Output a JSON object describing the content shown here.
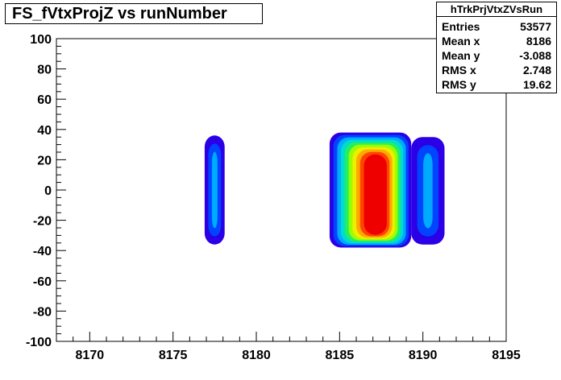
{
  "title": "FS_fVtxProjZ  vs runNumber",
  "stats": {
    "name": "hTrkPrjVtxZVsRun",
    "rows": [
      {
        "label": "Entries",
        "value": "53577"
      },
      {
        "label": "Mean x",
        "value": "8186"
      },
      {
        "label": "Mean y",
        "value": "-3.088"
      },
      {
        "label": "RMS x",
        "value": "2.748"
      },
      {
        "label": "RMS y",
        "value": "19.62"
      }
    ]
  },
  "chart_data": {
    "type": "heatmap",
    "title": "FS_fVtxProjZ  vs runNumber",
    "xlabel": "",
    "ylabel": "",
    "xlim": [
      8168,
      8195
    ],
    "ylim": [
      -100,
      100
    ],
    "x_ticks": [
      8170,
      8175,
      8180,
      8185,
      8190,
      8195
    ],
    "y_ticks": [
      -100,
      -80,
      -60,
      -40,
      -20,
      0,
      20,
      40,
      60,
      80,
      100
    ],
    "colormap": [
      "#2b00e6",
      "#0044ff",
      "#00aaff",
      "#00ddcc",
      "#22ee66",
      "#99ff00",
      "#eeee00",
      "#ffaa00",
      "#ff4400",
      "#ee0000"
    ],
    "clusters": [
      {
        "x_range": [
          8176.9,
          8178.1
        ],
        "y_range": [
          -36,
          36
        ],
        "peak_level": 2,
        "hotspots": [
          {
            "y": -20,
            "level": 2
          },
          {
            "y": 0,
            "level": 2
          },
          {
            "y": 15,
            "level": 2
          }
        ]
      },
      {
        "x_range": [
          8184.4,
          8189.3
        ],
        "y_range": [
          -38,
          38
        ],
        "peak_level": 9,
        "hotspots": [
          {
            "y": -20,
            "level": 9
          },
          {
            "y": -5,
            "level": 9
          },
          {
            "y": 12,
            "level": 9
          }
        ]
      },
      {
        "x_range": [
          8189.3,
          8191.3
        ],
        "y_range": [
          -36,
          35
        ],
        "peak_level": 2,
        "hotspots": [
          {
            "y": -10,
            "level": 2
          },
          {
            "y": 10,
            "level": 2
          }
        ]
      }
    ]
  }
}
